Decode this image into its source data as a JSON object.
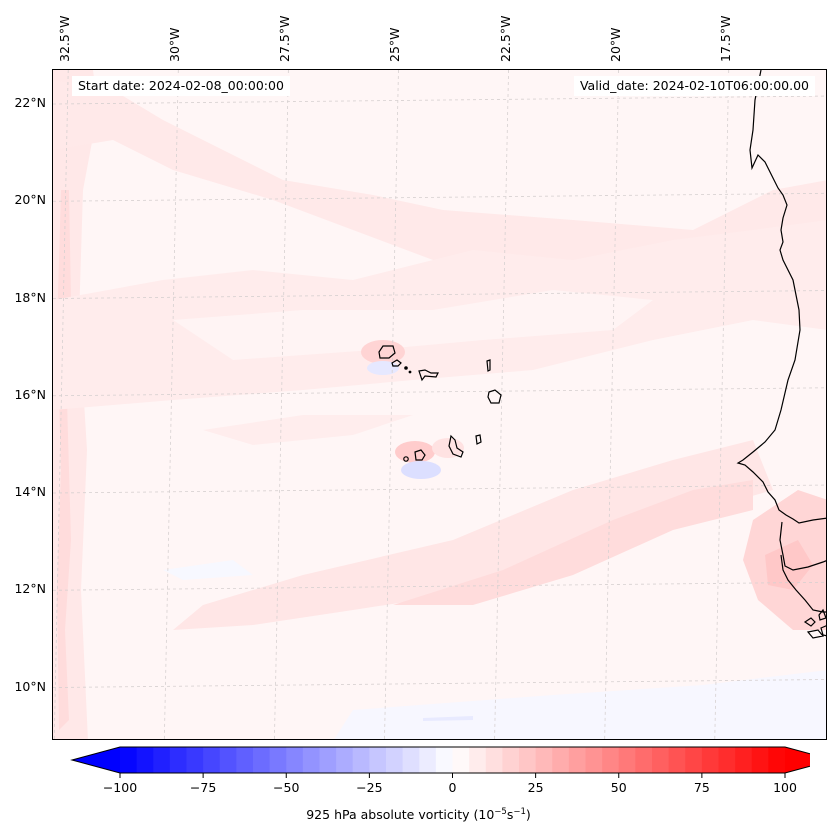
{
  "figure": {
    "start_date_label": "Start date: 2024-02-08_00:00:00",
    "valid_date_label": "Valid_date: 2024-02-10T06:00:00.00",
    "variable": "925 hPa absolute vorticity",
    "units_prefix": "(10",
    "units_exp1": "−5",
    "units_mid": "s",
    "units_exp2": "−1",
    "units_suffix": ")"
  },
  "map": {
    "region": "Eastern tropical Atlantic – Cape Verde Islands and West African coast (Senegal/Guinea-Bissau)",
    "lon_labels": [
      "32.5°W",
      "30°W",
      "27.5°W",
      "25°W",
      "22.5°W",
      "20°W",
      "17.5°W"
    ],
    "lat_labels": [
      "22°N",
      "20°N",
      "18°N",
      "16°N",
      "14°N",
      "12°N",
      "10°N"
    ],
    "lon_range": [
      -32.8,
      -15.2
    ],
    "lat_range": [
      8.9,
      22.7
    ],
    "gridlines": "dashed light gray",
    "coastline_color": "#000000",
    "features": [
      "Weak positive vorticity bands (0–10) across most of the domain",
      "Dipoles (red above / blue below) in lee of Santo Antão and Fogo/Brava islands",
      "Enhanced positive vorticity (~10–20) off Guinea-Bissau coast near 12°N",
      "Weak negative vorticity strip near 9°N along southern edge"
    ]
  },
  "chart_data": {
    "type": "heatmap",
    "title": "",
    "colormap": "bwr",
    "colorbar": {
      "label": "925 hPa absolute vorticity (10^-5 s^-1)",
      "min": -100,
      "max": 100,
      "step": 5,
      "extend": "both",
      "ticks": [
        -100,
        -75,
        -50,
        -25,
        0,
        25,
        50,
        75,
        100
      ],
      "tick_labels": [
        "−100",
        "−75",
        "−50",
        "−25",
        "0",
        "25",
        "50",
        "75",
        "100"
      ],
      "orientation": "horizontal",
      "placement": "bottom"
    },
    "xlabel": "",
    "ylabel": "",
    "x_ticks": [
      "32.5°W",
      "30°W",
      "27.5°W",
      "25°W",
      "22.5°W",
      "20°W",
      "17.5°W"
    ],
    "y_ticks": [
      "22°N",
      "20°N",
      "18°N",
      "16°N",
      "14°N",
      "12°N",
      "10°N"
    ],
    "grid": true,
    "value_summary": {
      "background": [
        0,
        5
      ],
      "bands": [
        5,
        15
      ],
      "coastal_max_near_12N": [
        15,
        25
      ],
      "island_dipoles": [
        -15,
        20
      ]
    }
  }
}
